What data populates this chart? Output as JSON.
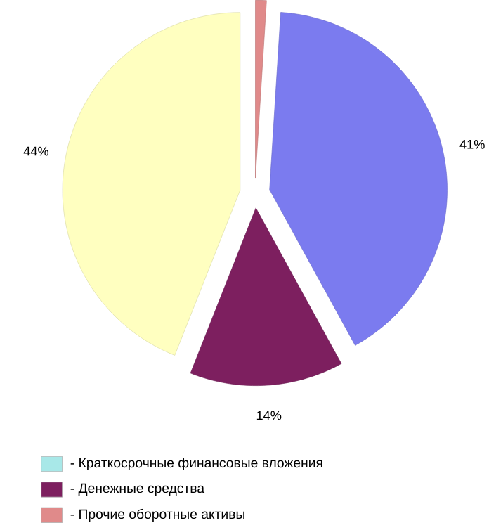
{
  "chart_data": {
    "type": "pie",
    "categories": [
      "- Прочие оборотные активы",
      null,
      "- Денежные средства",
      null,
      "- Краткосрочные финансовые вложения"
    ],
    "values": [
      1,
      41,
      14,
      44,
      0
    ],
    "colors": [
      "#e08a8a",
      "#7b7bef",
      "#7d1f5f",
      "#ffffc0",
      "#a8e8e8"
    ],
    "value_labels": [
      null,
      "41%",
      "14%",
      "44%",
      null
    ],
    "legend": "bottom"
  }
}
